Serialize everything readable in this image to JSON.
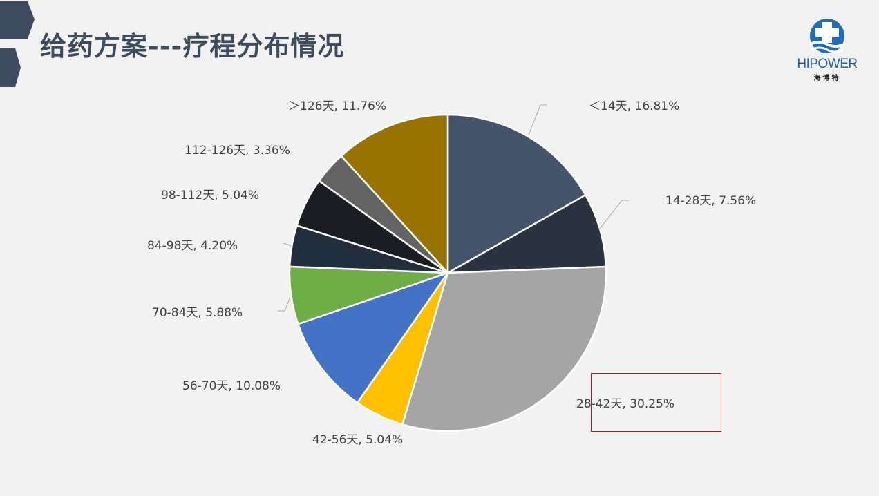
{
  "slide": {
    "title": "给药方案---疗程分布情况",
    "logo": {
      "text": "HIPOWER",
      "sub": "海博特",
      "icon": "hipower-logo"
    },
    "colors": {
      "title": "#3d4b5e",
      "accent": "#3d4b5e",
      "highlight_box": "#a31f1f"
    }
  },
  "chart_data": {
    "type": "pie",
    "start_angle_deg": 0,
    "direction": "clockwise",
    "slices": [
      {
        "label": "＜14天",
        "value": 16.81,
        "display": "＜14天, 16.81%",
        "color": "#44546a"
      },
      {
        "label": "14-28天",
        "value": 7.56,
        "display": "14-28天, 7.56%",
        "color": "#2a3441"
      },
      {
        "label": "28-42天",
        "value": 30.25,
        "display": "28-42天, 30.25%",
        "color": "#a5a5a5"
      },
      {
        "label": "42-56天",
        "value": 5.04,
        "display": "42-56天, 5.04%",
        "color": "#ffc000"
      },
      {
        "label": "56-70天",
        "value": 10.08,
        "display": "56-70天, 10.08%",
        "color": "#4472c4"
      },
      {
        "label": "70-84天",
        "value": 5.88,
        "display": "70-84天, 5.88%",
        "color": "#70ad47"
      },
      {
        "label": "84-98天",
        "value": 4.2,
        "display": "84-98天, 4.20%",
        "color": "#232e3c"
      },
      {
        "label": "98-112天",
        "value": 5.04,
        "display": "98-112天, 5.04%",
        "color": "#1a1e24"
      },
      {
        "label": "112-126天",
        "value": 3.36,
        "display": "112-126天, 3.36%",
        "color": "#636363"
      },
      {
        "label": "＞126天",
        "value": 11.76,
        "display": "＞126天, 11.76%",
        "color": "#997300"
      }
    ],
    "highlighted_slice": "28-42天"
  }
}
